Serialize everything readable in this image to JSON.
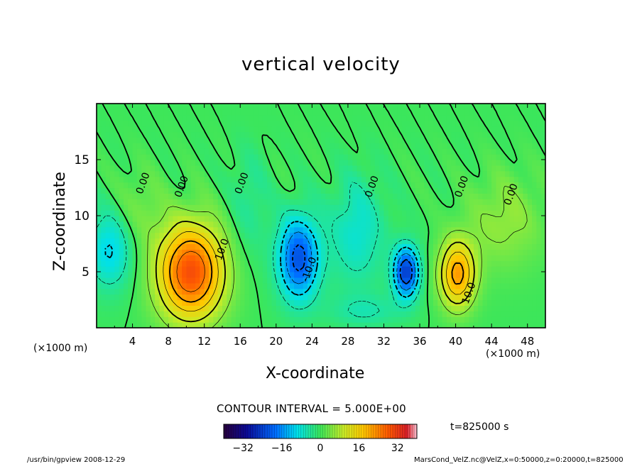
{
  "chart_data": {
    "type": "heatmap",
    "title": "vertical velocity",
    "xlabel": "X-coordinate",
    "ylabel": "Z-coordinate",
    "x_unit_left": "(×1000 m)",
    "x_unit_right": "(×1000 m)",
    "xlim": [
      0,
      50
    ],
    "ylim": [
      0,
      20
    ],
    "x_ticks": [
      4,
      8,
      12,
      16,
      20,
      24,
      28,
      32,
      36,
      40,
      44,
      48
    ],
    "y_ticks": [
      5,
      10,
      15
    ],
    "contour_interval_text": "CONTOUR INTERVAL = 5.000E+00",
    "contour_labels": [
      {
        "text": "0.00",
        "x": 5.5,
        "y": 12.8
      },
      {
        "text": "0.00",
        "x": 9.8,
        "y": 12.5
      },
      {
        "text": "0.00",
        "x": 16.5,
        "y": 12.8
      },
      {
        "text": "10.0",
        "x": 14.3,
        "y": 6.9
      },
      {
        "text": "-10.0",
        "x": 24.0,
        "y": 5.1
      },
      {
        "text": "0.00",
        "x": 31.0,
        "y": 12.5
      },
      {
        "text": "0.00",
        "x": 41.0,
        "y": 12.5
      },
      {
        "text": "0.00",
        "x": 46.5,
        "y": 11.8
      },
      {
        "text": "10.0",
        "x": 41.8,
        "y": 3.0
      }
    ],
    "colorbar": {
      "min": -40,
      "max": 40,
      "ticks": [
        -32,
        -16,
        0,
        16,
        32
      ]
    },
    "features": [
      {
        "x": 10.5,
        "y": 5.0,
        "amplitude": 30,
        "sx": 2.6,
        "sy": 3.0
      },
      {
        "x": 22.5,
        "y": 6.2,
        "amplitude": -22,
        "sx": 1.6,
        "sy": 2.6
      },
      {
        "x": 34.5,
        "y": 5.0,
        "amplitude": -25,
        "sx": 1.0,
        "sy": 1.6
      },
      {
        "x": 40.2,
        "y": 4.8,
        "amplitude": 22,
        "sx": 1.4,
        "sy": 2.1
      },
      {
        "x": 1.5,
        "y": 7.0,
        "amplitude": -11,
        "sx": 1.8,
        "sy": 2.5
      },
      {
        "x": 29.0,
        "y": 8.5,
        "amplitude": -8,
        "sx": 2.2,
        "sy": 3.5
      },
      {
        "x": 45.5,
        "y": 9.5,
        "amplitude": 6,
        "sx": 3.0,
        "sy": 3.0
      },
      {
        "x": 17.0,
        "y": 11.0,
        "amplitude": -4,
        "sx": 1.5,
        "sy": 3.5
      },
      {
        "x": 4.5,
        "y": 10.5,
        "amplitude": 4,
        "sx": 2.0,
        "sy": 2.5
      },
      {
        "x": 30.0,
        "y": 1.5,
        "amplitude": -5,
        "sx": 3.0,
        "sy": 1.0
      }
    ]
  },
  "time_label": "t=825000 s",
  "footer_left": "/usr/bin/gpview   2008-12-29",
  "footer_right": "MarsCond_VelZ.nc@VelZ,x=0:50000,z=0:20000,t=825000",
  "colors": {
    "background": "#ffffff",
    "frame": "#000000"
  }
}
